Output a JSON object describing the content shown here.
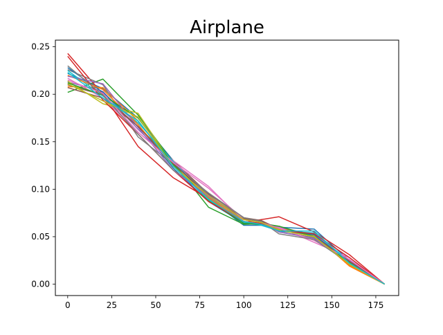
{
  "chart_data": {
    "type": "line",
    "title": "Airplane",
    "xlabel": "",
    "ylabel": "",
    "xlim": [
      -7,
      188
    ],
    "ylim": [
      -0.012,
      0.257
    ],
    "grid": false,
    "xticks": [
      0,
      25,
      50,
      75,
      100,
      125,
      150,
      175
    ],
    "yticks": [
      0.0,
      0.05,
      0.1,
      0.15,
      0.2,
      0.25
    ],
    "x": [
      0,
      20,
      40,
      60,
      80,
      100,
      110,
      120,
      140,
      160,
      180
    ],
    "series": [
      {
        "color": "#1f77b4",
        "values": [
          0.222,
          0.206,
          0.175,
          0.13,
          0.09,
          0.062,
          0.062,
          0.06,
          0.058,
          0.025,
          0.0
        ]
      },
      {
        "color": "#ff7f0e",
        "values": [
          0.208,
          0.207,
          0.172,
          0.125,
          0.092,
          0.068,
          0.065,
          0.059,
          0.052,
          0.019,
          0.0
        ]
      },
      {
        "color": "#2ca02c",
        "values": [
          0.202,
          0.216,
          0.178,
          0.128,
          0.081,
          0.063,
          0.064,
          0.061,
          0.05,
          0.025,
          0.0
        ]
      },
      {
        "color": "#d62728",
        "values": [
          0.243,
          0.2,
          0.145,
          0.112,
          0.09,
          0.065,
          0.068,
          0.071,
          0.055,
          0.031,
          0.0
        ]
      },
      {
        "color": "#9467bd",
        "values": [
          0.213,
          0.203,
          0.163,
          0.128,
          0.094,
          0.066,
          0.064,
          0.06,
          0.052,
          0.024,
          0.0
        ]
      },
      {
        "color": "#8c564b",
        "values": [
          0.21,
          0.199,
          0.166,
          0.13,
          0.095,
          0.07,
          0.067,
          0.058,
          0.051,
          0.025,
          0.0
        ]
      },
      {
        "color": "#e377c2",
        "values": [
          0.217,
          0.196,
          0.16,
          0.13,
          0.103,
          0.066,
          0.064,
          0.06,
          0.044,
          0.028,
          0.0
        ]
      },
      {
        "color": "#7f7f7f",
        "values": [
          0.226,
          0.21,
          0.155,
          0.126,
          0.096,
          0.07,
          0.066,
          0.055,
          0.049,
          0.023,
          0.0
        ]
      },
      {
        "color": "#bcbd22",
        "values": [
          0.214,
          0.19,
          0.18,
          0.125,
          0.092,
          0.068,
          0.065,
          0.058,
          0.051,
          0.022,
          0.0
        ]
      },
      {
        "color": "#17becf",
        "values": [
          0.225,
          0.198,
          0.17,
          0.129,
          0.09,
          0.065,
          0.062,
          0.056,
          0.054,
          0.024,
          0.0
        ]
      },
      {
        "color": "#1f77b4",
        "values": [
          0.228,
          0.202,
          0.168,
          0.122,
          0.087,
          0.064,
          0.063,
          0.056,
          0.052,
          0.022,
          0.0
        ]
      },
      {
        "color": "#ff7f0e",
        "values": [
          0.22,
          0.205,
          0.168,
          0.124,
          0.091,
          0.066,
          0.064,
          0.057,
          0.05,
          0.02,
          0.0
        ]
      },
      {
        "color": "#2ca02c",
        "values": [
          0.212,
          0.199,
          0.175,
          0.126,
          0.088,
          0.064,
          0.063,
          0.061,
          0.05,
          0.023,
          0.0
        ]
      },
      {
        "color": "#d62728",
        "values": [
          0.24,
          0.194,
          0.158,
          0.12,
          0.087,
          0.066,
          0.064,
          0.057,
          0.053,
          0.028,
          0.0
        ]
      },
      {
        "color": "#9467bd",
        "values": [
          0.219,
          0.211,
          0.165,
          0.12,
          0.092,
          0.068,
          0.065,
          0.055,
          0.048,
          0.025,
          0.0
        ]
      },
      {
        "color": "#8c564b",
        "values": [
          0.207,
          0.196,
          0.166,
          0.127,
          0.093,
          0.069,
          0.066,
          0.057,
          0.05,
          0.024,
          0.0
        ]
      },
      {
        "color": "#e377c2",
        "values": [
          0.215,
          0.201,
          0.16,
          0.128,
          0.101,
          0.068,
          0.065,
          0.059,
          0.046,
          0.026,
          0.0
        ]
      },
      {
        "color": "#7f7f7f",
        "values": [
          0.23,
          0.199,
          0.158,
          0.12,
          0.096,
          0.07,
          0.066,
          0.053,
          0.047,
          0.022,
          0.0
        ]
      },
      {
        "color": "#bcbd22",
        "values": [
          0.211,
          0.193,
          0.176,
          0.124,
          0.093,
          0.068,
          0.065,
          0.057,
          0.05,
          0.021,
          0.0
        ]
      },
      {
        "color": "#17becf",
        "values": [
          0.223,
          0.196,
          0.172,
          0.124,
          0.089,
          0.066,
          0.063,
          0.056,
          0.056,
          0.022,
          0.0
        ]
      }
    ]
  }
}
